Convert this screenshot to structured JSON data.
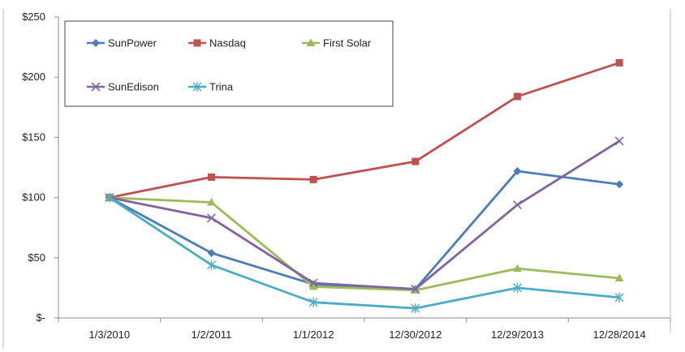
{
  "chart_data": {
    "type": "line",
    "title": "",
    "xlabel": "",
    "ylabel": "",
    "categories": [
      "1/3/2010",
      "1/2/2011",
      "1/1/2012",
      "12/30/2012",
      "12/29/2013",
      "12/28/2014"
    ],
    "ylim": [
      0,
      250
    ],
    "yticks": [
      0,
      50,
      100,
      150,
      200,
      250
    ],
    "ytick_labels": [
      "$-",
      "$50",
      "$100",
      "$150",
      "$200",
      "$250"
    ],
    "grid": false,
    "legend_position": "top-left",
    "series": [
      {
        "name": "SunPower",
        "color": "#4a7ebb",
        "marker": "diamond",
        "values": [
          100,
          54,
          28,
          24,
          122,
          111
        ]
      },
      {
        "name": "Nasdaq",
        "color": "#c0504d",
        "marker": "square",
        "values": [
          100,
          117,
          115,
          130,
          184,
          212
        ]
      },
      {
        "name": "First Solar",
        "color": "#9bbb59",
        "marker": "triangle",
        "values": [
          100,
          96,
          26,
          23,
          41,
          33
        ]
      },
      {
        "name": "SunEdison",
        "color": "#8064a2",
        "marker": "x",
        "values": [
          100,
          83,
          29,
          24,
          94,
          147
        ]
      },
      {
        "name": "Trina",
        "color": "#4bacc6",
        "marker": "star",
        "values": [
          100,
          44,
          13,
          8,
          25,
          17
        ]
      }
    ]
  }
}
